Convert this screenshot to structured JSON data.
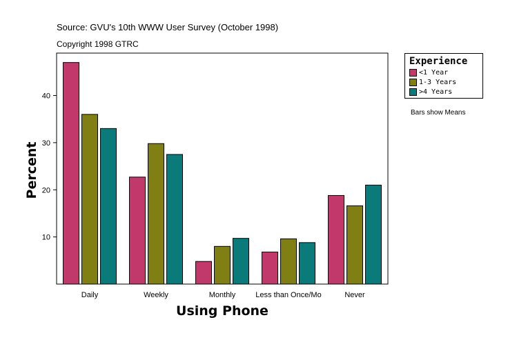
{
  "source_line": "Source: GVU's 10th WWW User Survey (October 1998)",
  "copyright_line": "Copyright 1998 GTRC",
  "note": "Bars show Means",
  "colors": {
    "lt1": "#c0396a",
    "y1to3": "#7f7f14",
    "gt4": "#0b7a7a"
  },
  "chart_data": {
    "type": "bar",
    "categories": [
      "Daily",
      "Weekly",
      "Monthly",
      "Less than Once/Mo",
      "Never"
    ],
    "series": [
      {
        "name": "<1 Year",
        "values": [
          47.0,
          22.7,
          4.8,
          6.8,
          18.8
        ]
      },
      {
        "name": "1-3 Years",
        "values": [
          36.0,
          29.8,
          8.0,
          9.6,
          16.6
        ]
      },
      {
        "name": ">4 Years",
        "values": [
          33.0,
          27.5,
          9.7,
          8.8,
          21.0
        ]
      }
    ],
    "xlabel": "Using Phone",
    "ylabel": "Percent",
    "yticks": [
      10,
      20,
      30,
      40
    ],
    "ylim": [
      0,
      49
    ],
    "grid": false,
    "legend": {
      "title": "Experience",
      "position": "right"
    }
  }
}
